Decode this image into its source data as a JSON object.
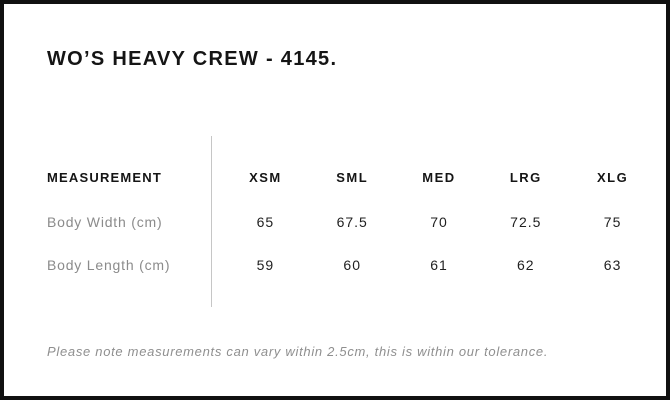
{
  "title": "WO’S HEAVY CREW - 4145.",
  "table": {
    "measurement_header": "MEASUREMENT",
    "size_headers": [
      "XSM",
      "SML",
      "MED",
      "LRG",
      "XLG"
    ],
    "rows": [
      {
        "label": "Body Width (cm)",
        "values": [
          "65",
          "67.5",
          "70",
          "72.5",
          "75"
        ]
      },
      {
        "label": "Body Length (cm)",
        "values": [
          "59",
          "60",
          "61",
          "62",
          "63"
        ]
      }
    ]
  },
  "note": "Please note measurements can vary within 2.5cm, this is within our tolerance.",
  "colors": {
    "frame_border": "#111111",
    "heading_text": "#151515",
    "value_text": "#1f1f1f",
    "label_text": "#8b8b8b",
    "note_text": "#8f8f8f",
    "divider": "#c6c6c6",
    "background": "#ffffff"
  },
  "chart_data": {
    "type": "table",
    "title": "WO’S HEAVY CREW - 4145.",
    "columns": [
      "MEASUREMENT",
      "XSM",
      "SML",
      "MED",
      "LRG",
      "XLG"
    ],
    "rows": [
      [
        "Body Width (cm)",
        65,
        67.5,
        70,
        72.5,
        75
      ],
      [
        "Body Length (cm)",
        59,
        60,
        61,
        62,
        63
      ]
    ],
    "footnote": "Please note measurements can vary within 2.5cm, this is within our tolerance."
  }
}
